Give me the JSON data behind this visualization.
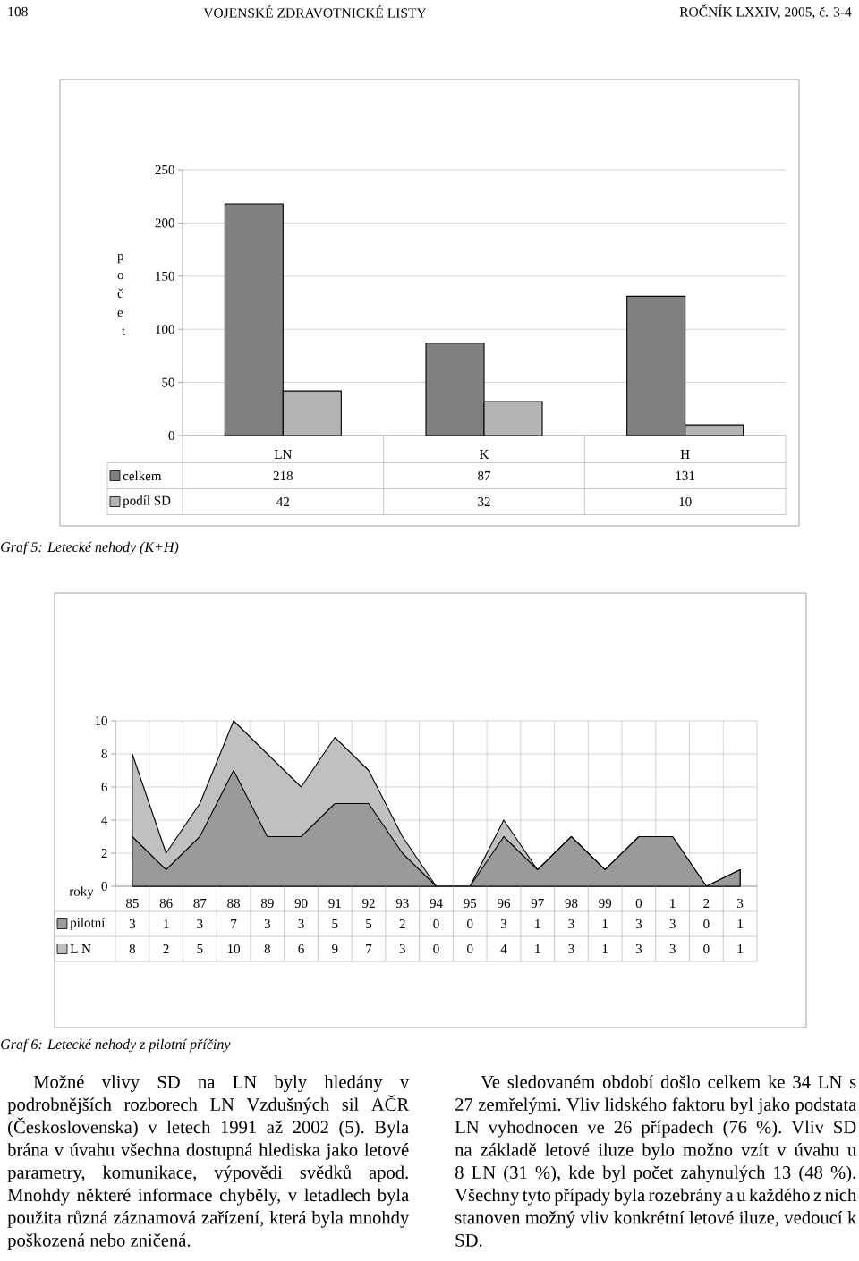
{
  "chart_data": [
    {
      "type": "bar",
      "title": "Graf 5: Letecké nehody (K+H)",
      "ylabel": "počet",
      "categories": [
        "LN",
        "K",
        "H"
      ],
      "series": [
        {
          "name": "celkem",
          "color": "#808080",
          "values": [
            218,
            87,
            131
          ]
        },
        {
          "name": "podíl SD",
          "color": "#b4b4b4",
          "values": [
            42,
            32,
            10
          ]
        }
      ],
      "ylim": [
        0,
        250
      ],
      "yticks": [
        0,
        50,
        100,
        150,
        200,
        250
      ],
      "grid": "y",
      "legend": "bottom",
      "data_labels": true,
      "annotations": [
        "108",
        "VOJENSKÉ ZDRAVOTNICKÉ LISTY",
        "ROČNÍK LXXIV, 2005, č. 3-4"
      ]
    },
    {
      "type": "area",
      "title": "Graf 6: Letecké nehody z pilotní příčiny",
      "xlabel": "roky",
      "categories": [
        "85",
        "86",
        "87",
        "88",
        "89",
        "90",
        "91",
        "92",
        "93",
        "94",
        "95",
        "96",
        "97",
        "98",
        "99",
        "0",
        "1",
        "2",
        "3"
      ],
      "series": [
        {
          "name": "pilotní",
          "color": "#9a9a9a",
          "values": [
            3,
            1,
            3,
            7,
            3,
            3,
            5,
            5,
            2,
            0,
            0,
            3,
            1,
            3,
            1,
            3,
            3,
            0,
            1
          ]
        },
        {
          "name": "L N",
          "color": "#c0c0c0",
          "values": [
            8,
            2,
            5,
            10,
            8,
            6,
            9,
            7,
            3,
            0,
            0,
            4,
            1,
            3,
            1,
            3,
            3,
            0,
            1
          ]
        }
      ],
      "ylim": [
        0,
        10
      ],
      "yticks": [
        0,
        2,
        4,
        6,
        8,
        10
      ],
      "grid": true,
      "legend": "bottom",
      "data_labels": true
    },
    {
      "type": "other",
      "annotations": [
        "Možné vlivy SD na LN byly hledány v podrobnějších rozborech LN Vzdušných sil AČR (Československa) v letech 1991 až 2002 (5). Byla brána v úvahu všechna dostupná hlediska jako letové parametry, komunikace, výpovědi svědků apod. Mnohdy některé informace chyběly, v letadlech byla použita různá záznamová zařízení, která byla mnohdy poškozená nebo zničená.",
        "Ve sledovaném období došlo celkem ke 34 LN s 27 zemřelými. Vliv lidského faktoru byl jako podstata LN vyhodnocen ve 26 případech (76 %). Vliv SD na základě letové iluze bylo možno vzít v úvahu u 8 LN (31 %), kde byl počet zahynulých 13 (48 %). Všechny tyto případy byla rozebrány a u každého z nich stanoven možný vliv konkrétní letové iluze, vedoucí k SD."
      ]
    }
  ]
}
